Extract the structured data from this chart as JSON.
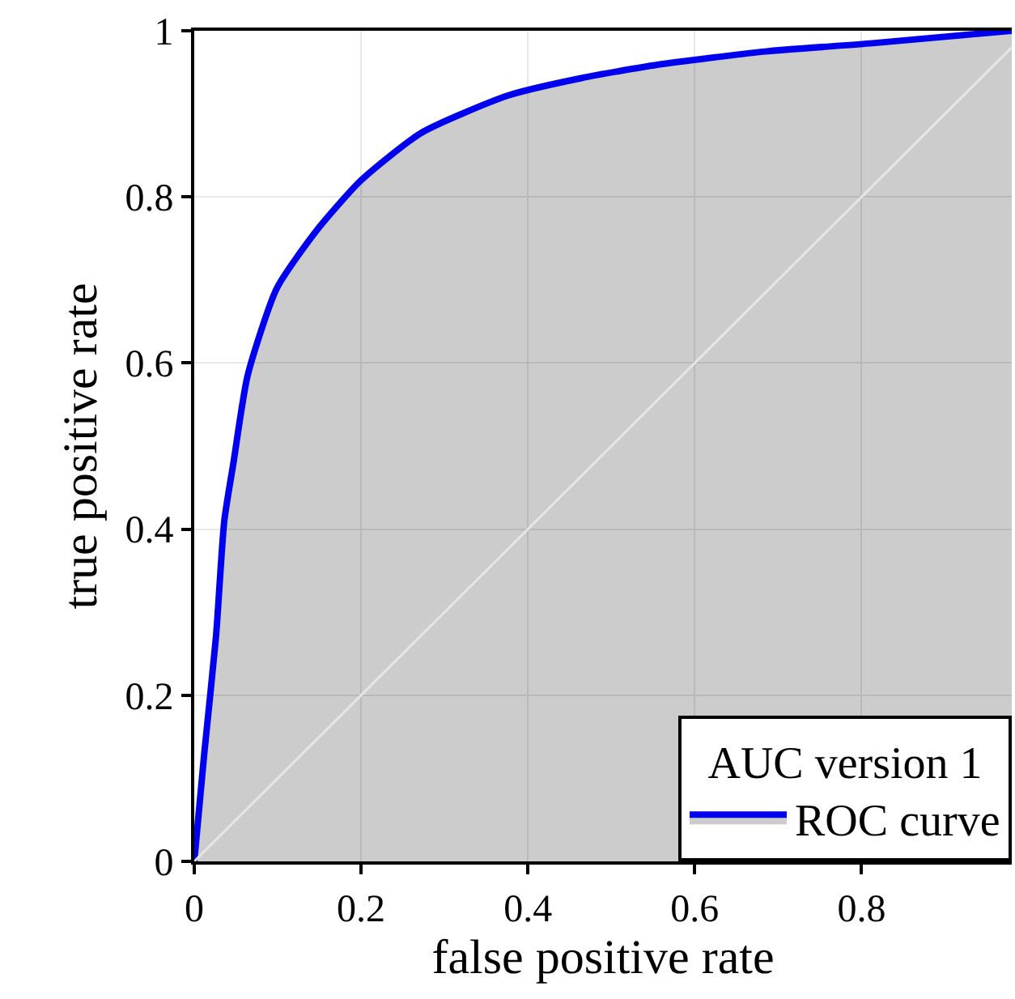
{
  "chart_data": {
    "type": "line",
    "xlabel": "false positive rate",
    "ylabel": "true positive rate",
    "legend_title": "AUC version 1",
    "xlim": [
      0,
      0.98
    ],
    "ylim": [
      0,
      1
    ],
    "xticks": [
      0,
      0.2,
      0.4,
      0.6,
      0.8
    ],
    "yticks": [
      0,
      0.2,
      0.4,
      0.6,
      0.8,
      1
    ],
    "grid": true,
    "legend": "bottom right",
    "marker": "none",
    "line_style": "solid",
    "series": [
      {
        "color": "#e6e6e6",
        "x": [
          0,
          0.98
        ],
        "values": [
          0,
          0.98
        ]
      },
      {
        "type": "area",
        "name": "ROC curve",
        "color": "#0000ee",
        "x": [
          0,
          0.012,
          0.026,
          0.036,
          0.047,
          0.064,
          0.099,
          0.147,
          0.2,
          0.272,
          0.376,
          0.464,
          0.555,
          0.684,
          0.813,
          0.98
        ],
        "values": [
          0,
          0.13,
          0.27,
          0.41,
          0.48,
          0.585,
          0.69,
          0.76,
          0.82,
          0.877,
          0.922,
          0.943,
          0.959,
          0.975,
          0.985,
          1
        ]
      }
    ]
  }
}
